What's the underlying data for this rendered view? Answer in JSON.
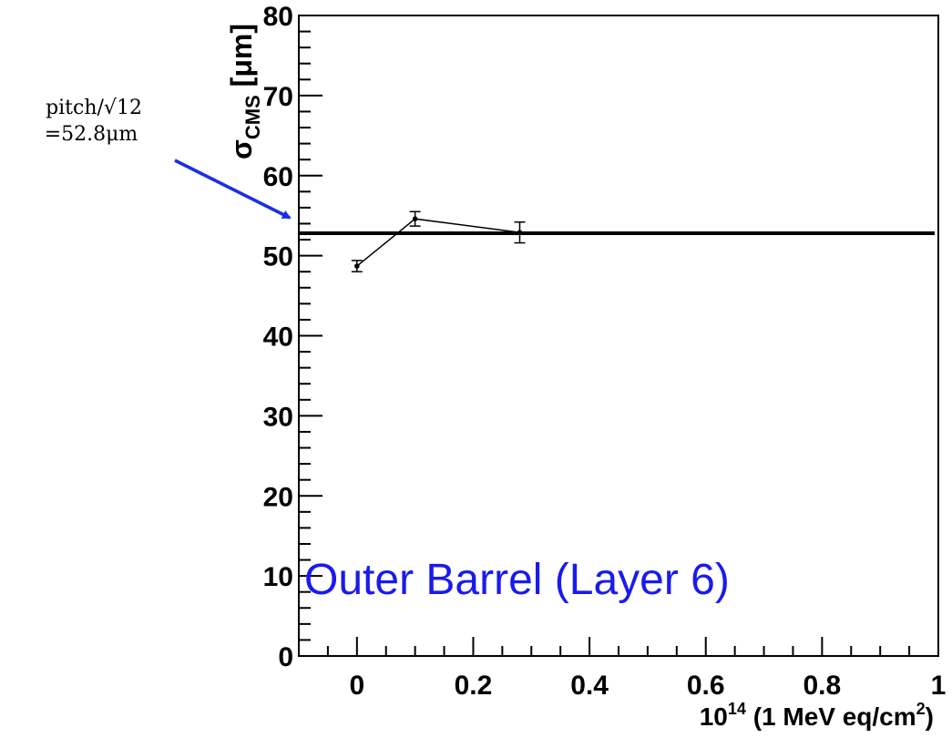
{
  "chart_data": {
    "type": "line",
    "xlim": [
      -0.1,
      1.0
    ],
    "ylim": [
      0,
      80
    ],
    "x_ticks": [
      "0",
      "0.2",
      "0.4",
      "0.6",
      "0.8",
      "1"
    ],
    "y_ticks": [
      "0",
      "10",
      "20",
      "30",
      "40",
      "50",
      "60",
      "70",
      "80"
    ],
    "xlabel": {
      "base": "10",
      "exp": "14",
      "text": " (1 MeV eq/cm",
      "unit_exp": "2",
      "close": ")"
    },
    "ylabel": {
      "symbol": "σ",
      "sub": "CMS",
      "unit": " [μm]"
    },
    "series": [
      {
        "x": [
          0.0,
          0.1,
          0.28
        ],
        "y": [
          48.7,
          54.6,
          52.9
        ],
        "yerr": [
          0.7,
          0.9,
          1.3
        ]
      }
    ],
    "reference_line": {
      "y": 52.8
    },
    "annotation": {
      "line1": "pitch/√12",
      "line2": "=52.8μm"
    },
    "panel_label": "Outer Barrel (Layer 6)",
    "colors": {
      "data": "#000000",
      "reference": "#000000",
      "arrow": "#1a2ee6",
      "panel_label": "#1a1aee"
    },
    "grid": false
  }
}
